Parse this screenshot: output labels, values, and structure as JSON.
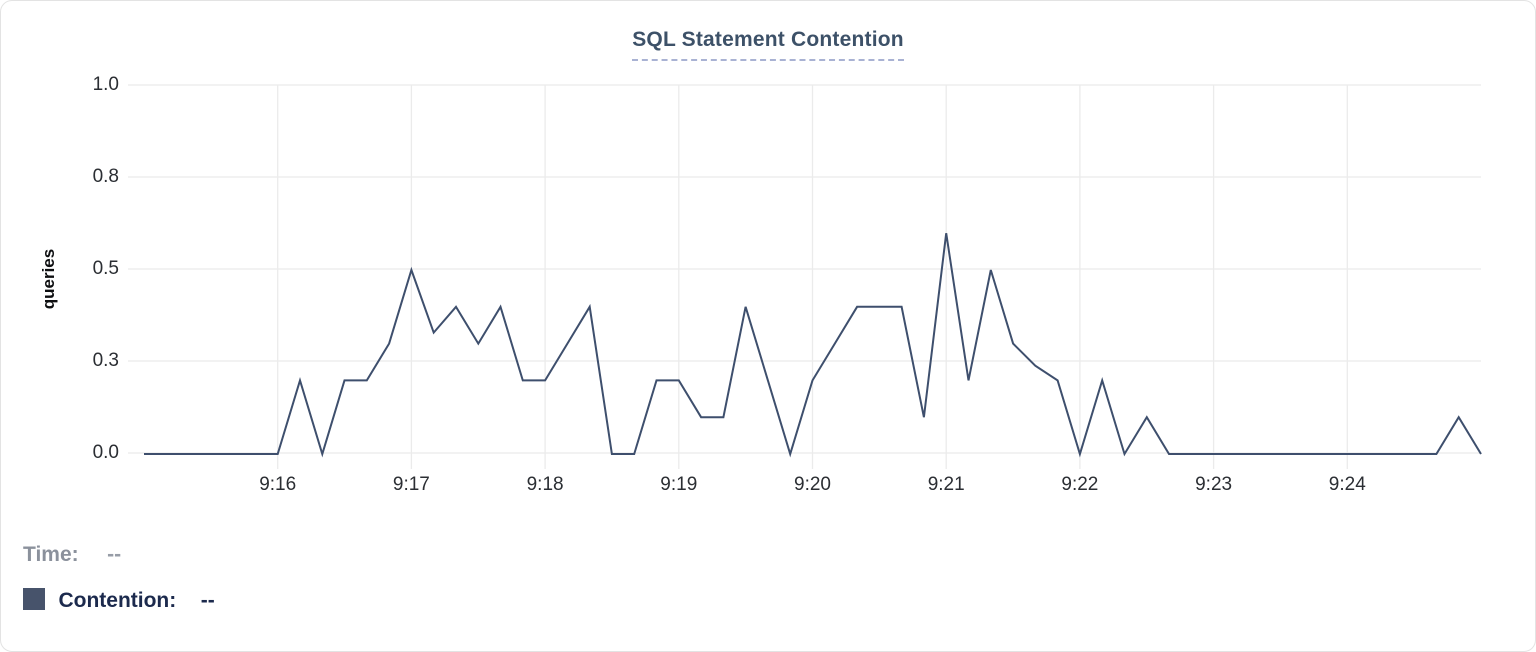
{
  "chart_data": {
    "type": "line",
    "title": "SQL Statement Contention",
    "ylabel": "queries",
    "xlabel": "",
    "ylim": [
      0,
      1
    ],
    "grid": true,
    "legend_position": "bottom-left",
    "line_color": "#3e4f6d",
    "grid_color": "#ebebeb",
    "x_start": "9:15:00",
    "x_end": "9:25:00",
    "x_interval_seconds": 10,
    "x_ticks": [
      {
        "label": "9:16",
        "seconds": 60
      },
      {
        "label": "9:17",
        "seconds": 120
      },
      {
        "label": "9:18",
        "seconds": 180
      },
      {
        "label": "9:19",
        "seconds": 240
      },
      {
        "label": "9:20",
        "seconds": 300
      },
      {
        "label": "9:21",
        "seconds": 360
      },
      {
        "label": "9:22",
        "seconds": 420
      },
      {
        "label": "9:23",
        "seconds": 480
      },
      {
        "label": "9:24",
        "seconds": 540
      }
    ],
    "y_ticks": [
      {
        "label": "1.0",
        "value": 1.0
      },
      {
        "label": "0.8",
        "value": 0.75
      },
      {
        "label": "0.5",
        "value": 0.5
      },
      {
        "label": "0.3",
        "value": 0.25
      },
      {
        "label": "0.0",
        "value": 0.0
      }
    ],
    "series": [
      {
        "name": "Contention",
        "color": "#3e4f6d",
        "values": [
          0,
          0,
          0,
          0,
          0,
          0,
          0,
          0.2,
          0,
          0.2,
          0.2,
          0.3,
          0.5,
          0.33,
          0.4,
          0.3,
          0.4,
          0.2,
          0.2,
          0.3,
          0.4,
          0,
          0,
          0.2,
          0.2,
          0.1,
          0.1,
          0.4,
          0.2,
          0,
          0.2,
          0.3,
          0.4,
          0.4,
          0.4,
          0.1,
          0.6,
          0.2,
          0.5,
          0.3,
          0.24,
          0.2,
          0,
          0.2,
          0,
          0.1,
          0,
          0,
          0,
          0,
          0,
          0,
          0,
          0,
          0,
          0,
          0,
          0,
          0,
          0.1,
          0
        ]
      }
    ]
  },
  "legend": {
    "time_label": "Time:",
    "time_value": "--",
    "contention_label": "Contention:",
    "contention_value": "--",
    "swatch_color": "#47536b"
  }
}
